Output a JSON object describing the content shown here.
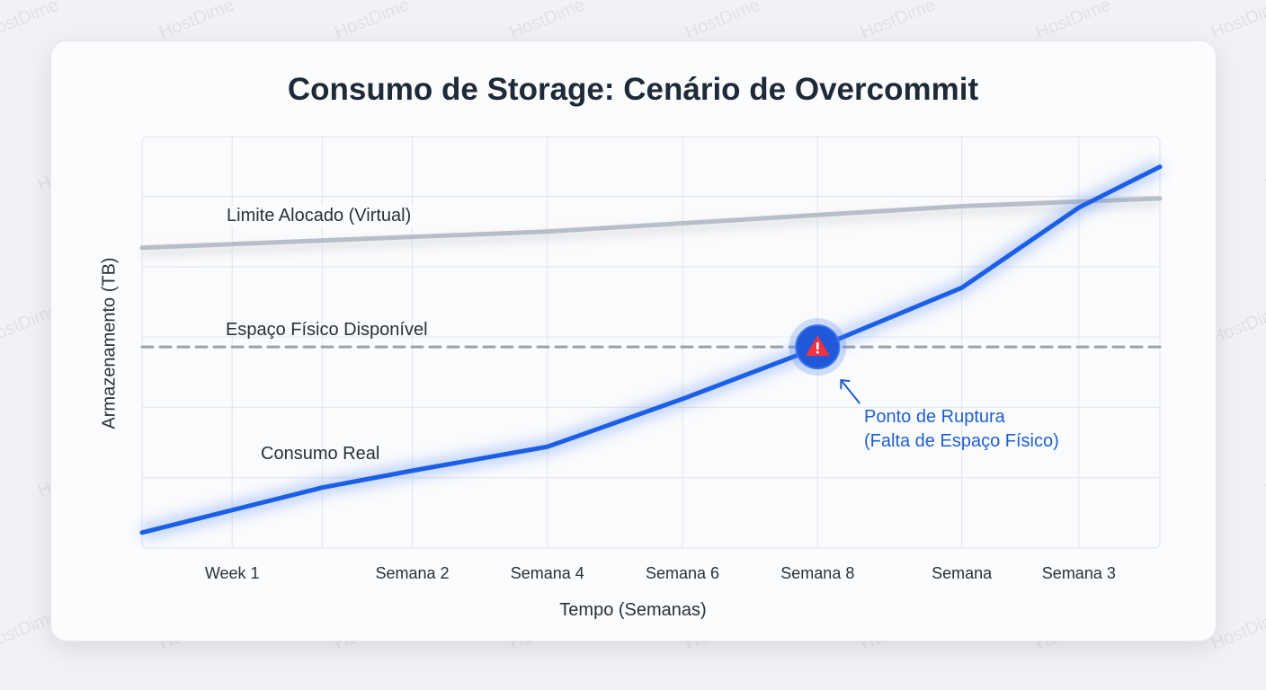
{
  "watermark": "HostDime",
  "chart_data": {
    "type": "line",
    "title": "Consumo de Storage: Cenário de Overcommit",
    "xlabel": "Tempo (Semanas)",
    "ylabel": "Armazenamento (TB)",
    "xlim": [
      0,
      11.3
    ],
    "ylim": [
      0,
      5.85
    ],
    "grid": true,
    "x_ticks": [
      {
        "x": 1.0,
        "label": "Week 1"
      },
      {
        "x": 3.0,
        "label": "Semana 2"
      },
      {
        "x": 4.5,
        "label": "Semana 4"
      },
      {
        "x": 6.0,
        "label": "Semana 6"
      },
      {
        "x": 7.5,
        "label": "Semana 8"
      },
      {
        "x": 9.1,
        "label": "Semana"
      },
      {
        "x": 10.4,
        "label": "Semana 3"
      }
    ],
    "x_gridlines": [
      1.0,
      2.0,
      3.0,
      4.5,
      6.0,
      7.5,
      9.1,
      10.4
    ],
    "y_gridlines": [
      1,
      2,
      3,
      4,
      5
    ],
    "series": [
      {
        "name": "Limite Alocado (Virtual)",
        "color": "#b8bec7",
        "style": "solid",
        "x": [
          0,
          4.5,
          9.1,
          11.3
        ],
        "y": [
          4.27,
          4.5,
          4.86,
          4.97
        ]
      },
      {
        "name": "Espaço Físico Disponível",
        "color": "#9aa1ab",
        "style": "dashed",
        "x": [
          0,
          11.3
        ],
        "y": [
          2.86,
          2.86
        ]
      },
      {
        "name": "Consumo Real",
        "color": "#1a5fe6",
        "style": "solid",
        "x": [
          0,
          2,
          3,
          4.5,
          6,
          7.5,
          9.1,
          10.4,
          11.3
        ],
        "y": [
          0.22,
          0.86,
          1.1,
          1.44,
          2.12,
          2.85,
          3.7,
          4.84,
          5.42
        ]
      }
    ],
    "annotations": [
      {
        "x": 7.5,
        "y": 2.86,
        "icon": "warning-icon",
        "color": "#ef3340",
        "line1": "Ponto de Ruptura",
        "line2": "(Falta de Espaço Físico)"
      }
    ]
  }
}
